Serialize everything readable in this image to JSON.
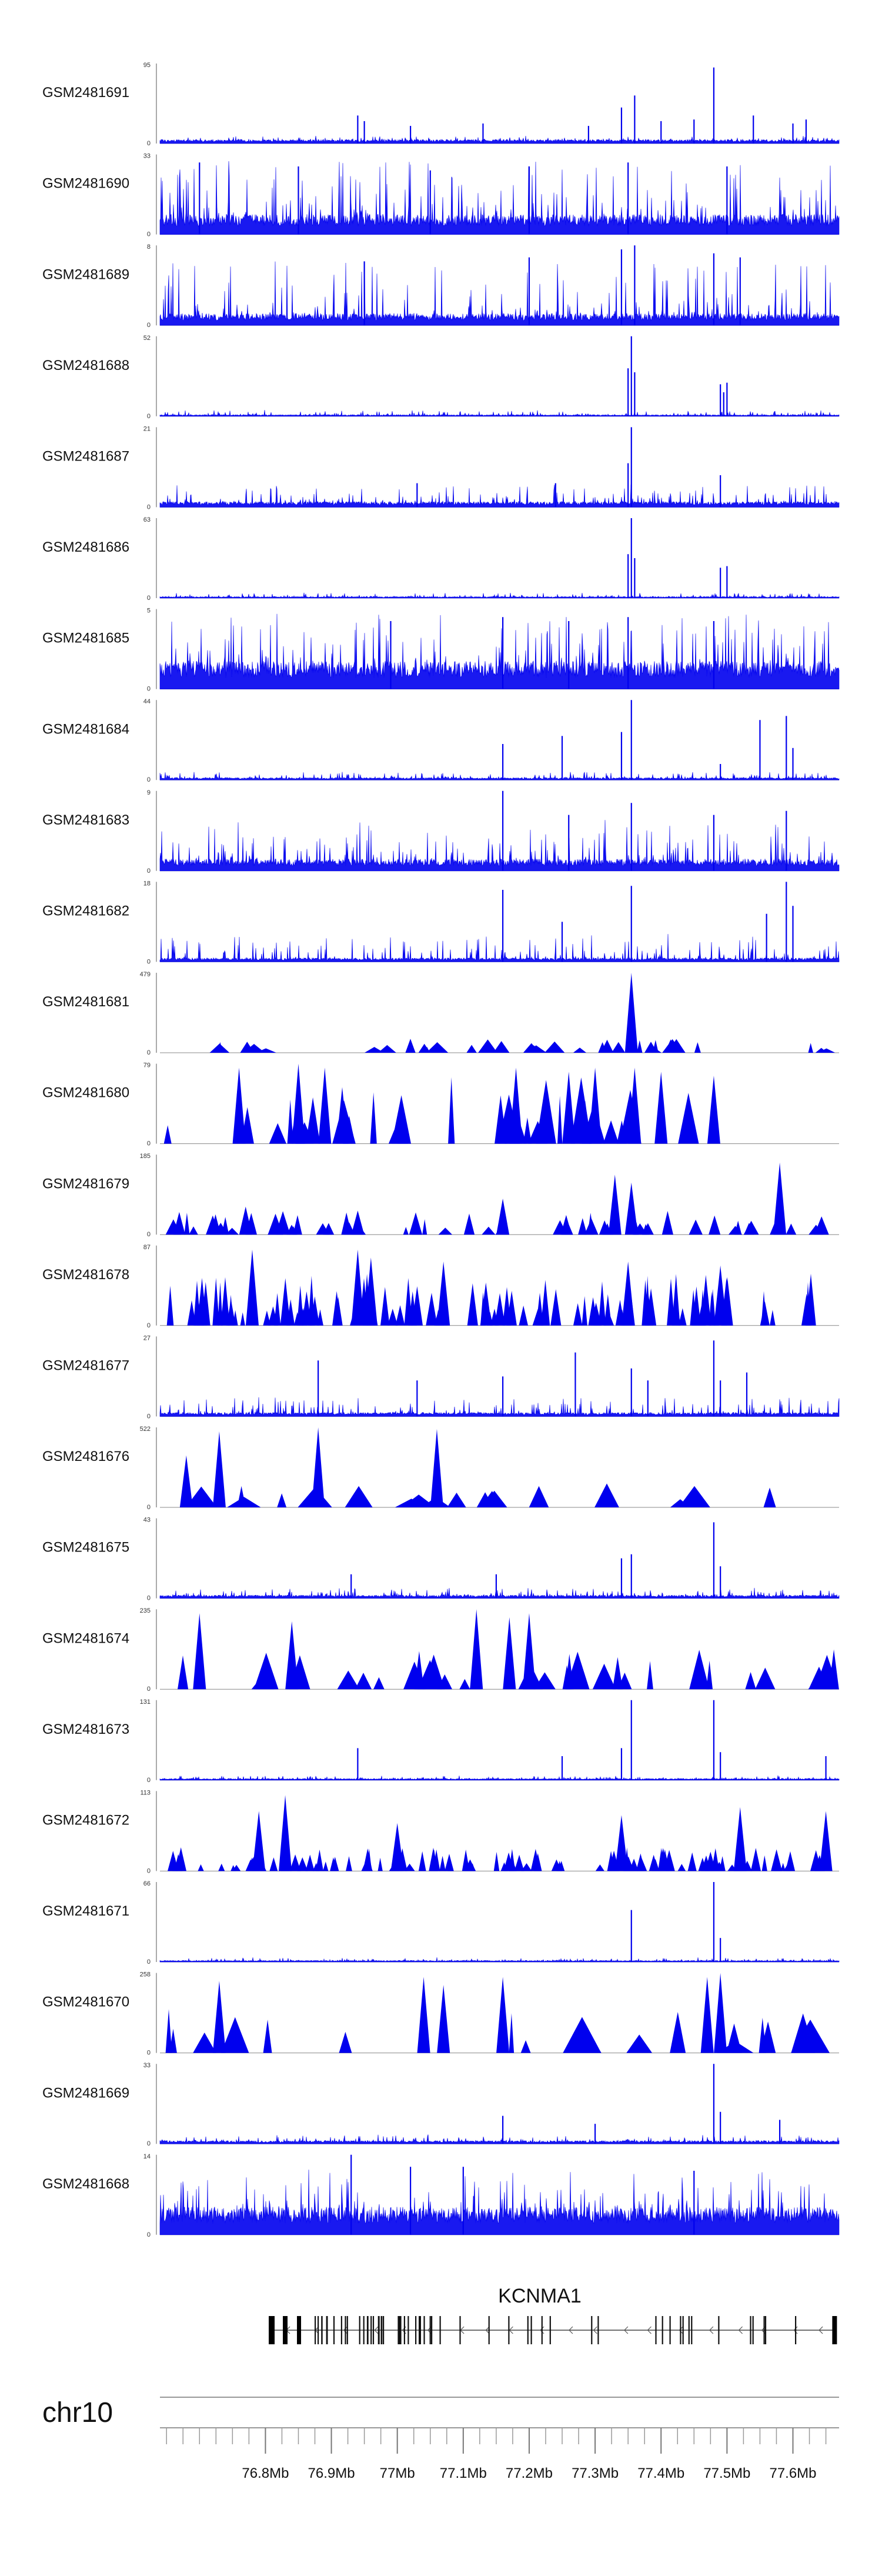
{
  "chart_data": {
    "type": "area",
    "title": "",
    "chromosome": "chr10",
    "x_range_mb": [
      76.64,
      77.67
    ],
    "track_color": "#0000ee",
    "tracks": [
      {
        "sample": "GSM2481691",
        "ymax": 95,
        "ymin": 0,
        "style": "signal",
        "baseline": 0.05,
        "noise": 0.05,
        "peaks": [
          [
            76.94,
            0.35
          ],
          [
            76.95,
            0.28
          ],
          [
            77.02,
            0.22
          ],
          [
            77.13,
            0.25
          ],
          [
            77.29,
            0.22
          ],
          [
            77.34,
            0.45
          ],
          [
            77.36,
            0.6
          ],
          [
            77.4,
            0.28
          ],
          [
            77.45,
            0.3
          ],
          [
            77.48,
            0.95
          ],
          [
            77.54,
            0.35
          ],
          [
            77.6,
            0.25
          ],
          [
            77.62,
            0.3
          ]
        ]
      },
      {
        "sample": "GSM2481690",
        "ymax": 33,
        "ymin": 0,
        "style": "signal",
        "baseline": 0.25,
        "noise": 0.75,
        "peaks": [
          [
            76.7,
            0.9
          ],
          [
            76.85,
            0.85
          ],
          [
            77.05,
            0.8
          ],
          [
            77.2,
            0.85
          ],
          [
            77.35,
            0.9
          ],
          [
            77.5,
            0.85
          ]
        ]
      },
      {
        "sample": "GSM2481689",
        "ymax": 8,
        "ymin": 0,
        "style": "signal",
        "baseline": 0.15,
        "noise": 0.7,
        "peaks": [
          [
            76.95,
            0.8
          ],
          [
            77.2,
            0.85
          ],
          [
            77.34,
            0.95
          ],
          [
            77.36,
            1.0
          ],
          [
            77.48,
            0.9
          ],
          [
            77.52,
            0.85
          ]
        ]
      },
      {
        "sample": "GSM2481688",
        "ymax": 52,
        "ymin": 0,
        "style": "signal",
        "baseline": 0.02,
        "noise": 0.06,
        "peaks": [
          [
            77.355,
            1.0
          ],
          [
            77.35,
            0.6
          ],
          [
            77.36,
            0.55
          ],
          [
            77.49,
            0.4
          ],
          [
            77.5,
            0.42
          ],
          [
            77.495,
            0.3
          ]
        ]
      },
      {
        "sample": "GSM2481687",
        "ymax": 21,
        "ymin": 0,
        "style": "signal",
        "baseline": 0.07,
        "noise": 0.25,
        "peaks": [
          [
            77.355,
            1.0
          ],
          [
            77.35,
            0.55
          ],
          [
            77.49,
            0.4
          ],
          [
            77.24,
            0.3
          ],
          [
            77.03,
            0.3
          ]
        ]
      },
      {
        "sample": "GSM2481686",
        "ymax": 63,
        "ymin": 0,
        "style": "signal",
        "baseline": 0.02,
        "noise": 0.05,
        "peaks": [
          [
            77.355,
            1.0
          ],
          [
            77.35,
            0.55
          ],
          [
            77.36,
            0.5
          ],
          [
            77.49,
            0.38
          ],
          [
            77.5,
            0.4
          ]
        ]
      },
      {
        "sample": "GSM2481685",
        "ymax": 5,
        "ymin": 0,
        "style": "signal",
        "baseline": 0.35,
        "noise": 0.65,
        "peaks": [
          [
            76.99,
            0.85
          ],
          [
            77.16,
            0.9
          ],
          [
            77.26,
            0.85
          ],
          [
            77.35,
            0.9
          ],
          [
            77.48,
            0.85
          ]
        ]
      },
      {
        "sample": "GSM2481684",
        "ymax": 44,
        "ymin": 0,
        "style": "signal",
        "baseline": 0.03,
        "noise": 0.08,
        "peaks": [
          [
            77.16,
            0.45
          ],
          [
            77.25,
            0.55
          ],
          [
            77.34,
            0.6
          ],
          [
            77.355,
            1.0
          ],
          [
            77.49,
            0.2
          ],
          [
            77.55,
            0.75
          ],
          [
            77.59,
            0.8
          ],
          [
            77.6,
            0.4
          ]
        ]
      },
      {
        "sample": "GSM2481683",
        "ymax": 9,
        "ymin": 0,
        "style": "signal",
        "baseline": 0.15,
        "noise": 0.5,
        "peaks": [
          [
            77.16,
            1.0
          ],
          [
            77.26,
            0.7
          ],
          [
            77.355,
            0.85
          ],
          [
            77.48,
            0.7
          ],
          [
            77.59,
            0.75
          ]
        ]
      },
      {
        "sample": "GSM2481682",
        "ymax": 18,
        "ymin": 0,
        "style": "signal",
        "baseline": 0.05,
        "noise": 0.3,
        "peaks": [
          [
            77.16,
            0.9
          ],
          [
            77.25,
            0.5
          ],
          [
            77.355,
            0.95
          ],
          [
            77.56,
            0.6
          ],
          [
            77.59,
            1.0
          ],
          [
            77.6,
            0.7
          ]
        ]
      },
      {
        "sample": "GSM2481681",
        "ymax": 479,
        "ymin": 0,
        "style": "sparse",
        "density": 36,
        "peak_height": 0.18,
        "peaks": [
          [
            77.355,
            1.0
          ]
        ]
      },
      {
        "sample": "GSM2481680",
        "ymax": 79,
        "ymin": 0,
        "style": "sparse",
        "density": 32,
        "peak_height": 0.85,
        "peaks": [
          [
            76.76,
            0.95
          ],
          [
            76.85,
            1.0
          ],
          [
            76.89,
            0.95
          ],
          [
            77.18,
            0.95
          ],
          [
            77.26,
            0.9
          ],
          [
            77.3,
            0.95
          ],
          [
            77.36,
            0.95
          ],
          [
            77.4,
            0.9
          ],
          [
            77.48,
            0.85
          ]
        ]
      },
      {
        "sample": "GSM2481679",
        "ymax": 185,
        "ymin": 0,
        "style": "sparse",
        "density": 60,
        "peak_height": 0.3,
        "peaks": [
          [
            76.77,
            0.35
          ],
          [
            76.94,
            0.3
          ],
          [
            77.16,
            0.45
          ],
          [
            77.33,
            0.75
          ],
          [
            77.355,
            0.65
          ],
          [
            77.58,
            0.9
          ]
        ]
      },
      {
        "sample": "GSM2481678",
        "ymax": 87,
        "ymin": 0,
        "style": "sparse",
        "density": 95,
        "peak_height": 0.65,
        "peaks": [
          [
            76.78,
            0.95
          ],
          [
            76.94,
            0.95
          ],
          [
            76.96,
            0.85
          ],
          [
            77.07,
            0.8
          ],
          [
            77.35,
            0.8
          ],
          [
            77.49,
            0.75
          ]
        ]
      },
      {
        "sample": "GSM2481677",
        "ymax": 27,
        "ymin": 0,
        "style": "signal",
        "baseline": 0.05,
        "noise": 0.2,
        "peaks": [
          [
            76.88,
            0.7
          ],
          [
            77.03,
            0.45
          ],
          [
            77.16,
            0.5
          ],
          [
            77.27,
            0.8
          ],
          [
            77.355,
            0.6
          ],
          [
            77.38,
            0.45
          ],
          [
            77.48,
            0.95
          ],
          [
            77.49,
            0.45
          ],
          [
            77.53,
            0.55
          ]
        ]
      },
      {
        "sample": "GSM2481676",
        "ymax": 522,
        "ymin": 0,
        "style": "sparse",
        "density": 20,
        "peak_height": 0.3,
        "peaks": [
          [
            76.68,
            0.65
          ],
          [
            76.73,
            0.95
          ],
          [
            76.88,
            1.0
          ],
          [
            77.06,
            0.98
          ]
        ]
      },
      {
        "sample": "GSM2481675",
        "ymax": 43,
        "ymin": 0,
        "style": "signal",
        "baseline": 0.04,
        "noise": 0.1,
        "peaks": [
          [
            76.93,
            0.3
          ],
          [
            77.15,
            0.3
          ],
          [
            77.34,
            0.5
          ],
          [
            77.355,
            0.55
          ],
          [
            77.48,
            0.95
          ],
          [
            77.49,
            0.4
          ]
        ]
      },
      {
        "sample": "GSM2481674",
        "ymax": 235,
        "ymin": 0,
        "style": "sparse",
        "density": 32,
        "peak_height": 0.5,
        "peaks": [
          [
            76.7,
            0.95
          ],
          [
            76.84,
            0.85
          ],
          [
            77.12,
            1.0
          ],
          [
            77.17,
            0.9
          ],
          [
            77.2,
            0.95
          ]
        ]
      },
      {
        "sample": "GSM2481673",
        "ymax": 131,
        "ymin": 0,
        "style": "signal",
        "baseline": 0.02,
        "noise": 0.04,
        "peaks": [
          [
            76.94,
            0.4
          ],
          [
            77.25,
            0.3
          ],
          [
            77.34,
            0.4
          ],
          [
            77.355,
            1.0
          ],
          [
            77.48,
            1.0
          ],
          [
            77.49,
            0.35
          ],
          [
            77.65,
            0.3
          ]
        ]
      },
      {
        "sample": "GSM2481672",
        "ymax": 113,
        "ymin": 0,
        "style": "sparse",
        "density": 95,
        "peak_height": 0.3,
        "peaks": [
          [
            76.79,
            0.75
          ],
          [
            76.83,
            0.95
          ],
          [
            77.0,
            0.6
          ],
          [
            77.34,
            0.7
          ],
          [
            77.52,
            0.8
          ],
          [
            77.65,
            0.75
          ]
        ]
      },
      {
        "sample": "GSM2481671",
        "ymax": 66,
        "ymin": 0,
        "style": "signal",
        "baseline": 0.02,
        "noise": 0.04,
        "peaks": [
          [
            77.355,
            0.65
          ],
          [
            77.48,
            1.0
          ],
          [
            77.49,
            0.3
          ]
        ]
      },
      {
        "sample": "GSM2481670",
        "ymax": 258,
        "ymin": 0,
        "style": "sparse",
        "density": 18,
        "peak_height": 0.55,
        "peaks": [
          [
            76.73,
            0.9
          ],
          [
            77.04,
            0.95
          ],
          [
            77.07,
            0.85
          ],
          [
            77.16,
            0.95
          ],
          [
            77.47,
            0.95
          ],
          [
            77.49,
            1.0
          ]
        ]
      },
      {
        "sample": "GSM2481669",
        "ymax": 33,
        "ymin": 0,
        "style": "signal",
        "baseline": 0.04,
        "noise": 0.08,
        "peaks": [
          [
            77.16,
            0.35
          ],
          [
            77.3,
            0.25
          ],
          [
            77.48,
            1.0
          ],
          [
            77.49,
            0.4
          ],
          [
            77.58,
            0.3
          ]
        ]
      },
      {
        "sample": "GSM2481668",
        "ymax": 14,
        "ymin": 0,
        "style": "signal",
        "baseline": 0.35,
        "noise": 0.55,
        "peaks": [
          [
            76.93,
            1.0
          ],
          [
            77.02,
            0.85
          ],
          [
            77.1,
            0.85
          ],
          [
            77.45,
            0.8
          ]
        ]
      }
    ],
    "gene": {
      "name": "KCNMA1",
      "strand": "-",
      "start_mb": 76.805,
      "end_mb": 77.665
    },
    "axis": {
      "ticks": [
        "76.8Mb",
        "76.9Mb",
        "77Mb",
        "77.1Mb",
        "77.2Mb",
        "77.3Mb",
        "77.4Mb",
        "77.5Mb",
        "77.6Mb"
      ],
      "tick_values": [
        76.8,
        76.9,
        77.0,
        77.1,
        77.2,
        77.3,
        77.4,
        77.5,
        77.6
      ],
      "minor_step": 0.025
    }
  }
}
